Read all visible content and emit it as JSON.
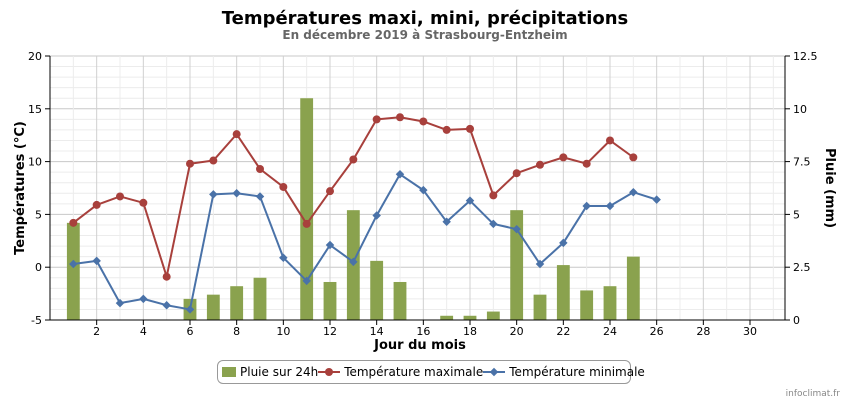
{
  "chart_data": {
    "type": "bar+line",
    "title": "Températures maxi, mini, précipitations",
    "subtitle": "En décembre 2019 à Strasbourg-Entzheim",
    "xlabel": "Jour du mois",
    "ylabel_left": "Températures (°C)",
    "ylabel_right": "Pluie (mm)",
    "xlim": [
      0,
      31.5
    ],
    "x_ticks": [
      2,
      4,
      6,
      8,
      10,
      12,
      14,
      16,
      18,
      20,
      22,
      24,
      26,
      28,
      30
    ],
    "ylim_left": [
      -5,
      20
    ],
    "y_ticks_left": [
      -5,
      0,
      5,
      10,
      15,
      20
    ],
    "ylim_right": [
      0,
      12.5
    ],
    "y_ticks_right": [
      "0",
      "2.5",
      "5",
      "7.5",
      "10",
      "12.5"
    ],
    "grid": true,
    "legend_position": "bottom",
    "series": [
      {
        "name": "Pluie sur 24h",
        "type": "bar",
        "axis": "right",
        "color": "#8aa24e",
        "x": [
          1,
          6,
          7,
          8,
          9,
          11,
          12,
          13,
          14,
          15,
          17,
          18,
          19,
          20,
          21,
          22,
          23,
          24,
          25
        ],
        "values": [
          4.6,
          1.0,
          1.2,
          1.6,
          2.0,
          10.5,
          1.8,
          5.2,
          2.8,
          1.8,
          0.2,
          0.2,
          0.4,
          5.2,
          1.2,
          2.6,
          1.4,
          1.6,
          3.0
        ]
      },
      {
        "name": "Température maximale",
        "type": "line",
        "axis": "left",
        "color": "#a8403c",
        "marker": "circle",
        "x": [
          1,
          2,
          3,
          4,
          5,
          6,
          7,
          8,
          9,
          10,
          11,
          12,
          13,
          14,
          15,
          16,
          17,
          18,
          19,
          20,
          21,
          22,
          23,
          24,
          25
        ],
        "values": [
          4.2,
          5.9,
          6.7,
          6.1,
          -0.9,
          9.8,
          10.1,
          12.6,
          9.3,
          7.6,
          4.1,
          7.2,
          10.2,
          14.0,
          14.2,
          13.8,
          13.0,
          13.1,
          6.8,
          8.9,
          9.7,
          10.4,
          9.8,
          12.0,
          10.4
        ]
      },
      {
        "name": "Température minimale",
        "type": "line",
        "axis": "left",
        "color": "#4a72a8",
        "marker": "diamond",
        "x": [
          1,
          2,
          3,
          4,
          5,
          6,
          7,
          8,
          9,
          10,
          11,
          12,
          13,
          14,
          15,
          16,
          17,
          18,
          19,
          20,
          21,
          22,
          23,
          24,
          25,
          26
        ],
        "values": [
          0.3,
          0.6,
          -3.4,
          -3.0,
          -3.6,
          -4.0,
          6.9,
          7.0,
          6.7,
          0.9,
          -1.3,
          2.1,
          0.5,
          4.9,
          8.8,
          7.3,
          4.3,
          6.3,
          4.1,
          3.6,
          0.3,
          2.3,
          5.8,
          5.8,
          7.1,
          6.4
        ]
      }
    ]
  },
  "credit": "infoclimat.fr"
}
